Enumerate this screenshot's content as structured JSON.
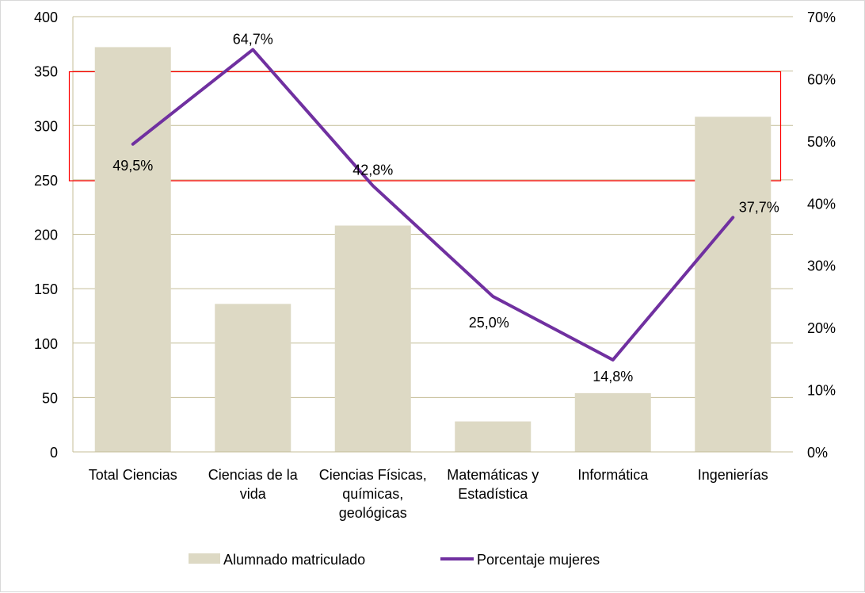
{
  "chart_data": {
    "type": "bar+line",
    "categories": [
      "Total Ciencias",
      "Ciencias de la vida",
      "Ciencias Físicas, químicas, geológicas",
      "Matemáticas y Estadística",
      "Informática",
      "Ingenierías"
    ],
    "category_lines": [
      [
        "Total Ciencias"
      ],
      [
        "Ciencias de la",
        "vida"
      ],
      [
        "Ciencias Físicas,",
        "químicas,",
        "geológicas"
      ],
      [
        "Matemáticas y",
        "Estadística"
      ],
      [
        "Informática"
      ],
      [
        "Ingenierías"
      ]
    ],
    "series": [
      {
        "name": "Alumnado matriculado",
        "type": "bar",
        "axis": "left",
        "values": [
          372,
          136,
          208,
          28,
          54,
          308
        ],
        "color": "#DDD9C4"
      },
      {
        "name": "Porcentaje mujeres",
        "type": "line",
        "axis": "right",
        "values": [
          49.5,
          64.7,
          42.8,
          25.0,
          14.8,
          37.7
        ],
        "data_labels": [
          "49,5%",
          "64,7%",
          "42,8%",
          "25,0%",
          "14,8%",
          "37,7%"
        ],
        "color": "#7030A0"
      }
    ],
    "y_left": {
      "lim": [
        0,
        400
      ],
      "ticks": [
        "0",
        "50",
        "100",
        "150",
        "200",
        "250",
        "300",
        "350",
        "400"
      ]
    },
    "y_right": {
      "lim": [
        0,
        70
      ],
      "ticks": [
        "0%",
        "10%",
        "20%",
        "30%",
        "40%",
        "50%",
        "60%",
        "70%"
      ]
    },
    "grid": true,
    "gridline_color": "#C4BD97",
    "highlight_box_color": "#FF0000",
    "legend_position": "bottom"
  }
}
